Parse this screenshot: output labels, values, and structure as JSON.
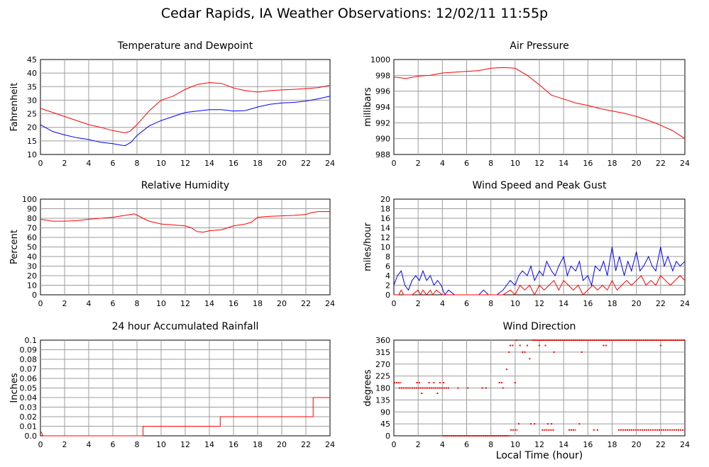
{
  "title": "Cedar Rapids, IA Weather Observations: 12/02/11 11:55p",
  "x_axis_title": "Local Time (hour)",
  "colors": {
    "red": "#ff0000",
    "blue": "#0000ff",
    "grid": "#9c9c9c"
  },
  "chart_data": [
    {
      "id": "temp",
      "type": "line",
      "title": "Temperature and Dewpoint",
      "xlabel": "",
      "ylabel": "Fahrenheit",
      "xlim": [
        0,
        24
      ],
      "ylim": [
        10,
        45
      ],
      "xticks": [
        0,
        2,
        4,
        6,
        8,
        10,
        12,
        14,
        16,
        18,
        20,
        22,
        24
      ],
      "yticks": [
        10,
        15,
        20,
        25,
        30,
        35,
        40,
        45
      ],
      "ytick_labels": [
        "10",
        "15",
        "20",
        "25",
        "30",
        "35",
        "40",
        "45"
      ],
      "grid": true,
      "series": [
        {
          "color": "#ff0000",
          "x": [
            0,
            2,
            4,
            5,
            6,
            7,
            7.4,
            8,
            9,
            10,
            11,
            12,
            13,
            14,
            15,
            16,
            17,
            18,
            19,
            20,
            21,
            22,
            23,
            24
          ],
          "y": [
            27,
            24,
            21,
            20,
            18.8,
            18,
            18.5,
            21,
            26,
            30,
            31.5,
            34,
            35.8,
            36.5,
            36.2,
            34.5,
            33.5,
            33,
            33.5,
            33.8,
            34,
            34.3,
            34.6,
            35.5
          ]
        },
        {
          "color": "#0000ff",
          "x": [
            0,
            1,
            2,
            3,
            4,
            5,
            6,
            7,
            7.5,
            8,
            9,
            10,
            11,
            12,
            13,
            14,
            15,
            16,
            17,
            18,
            19,
            20,
            21,
            22,
            23,
            24
          ],
          "y": [
            21,
            18.5,
            17.2,
            16.2,
            15.5,
            14.5,
            14,
            13.2,
            14.5,
            17,
            20.5,
            22.5,
            24,
            25.5,
            26,
            26.5,
            26.5,
            26,
            26.2,
            27.5,
            28.5,
            29,
            29.2,
            29.7,
            30.5,
            31.5
          ]
        }
      ]
    },
    {
      "id": "pressure",
      "type": "line",
      "title": "Air Pressure",
      "xlabel": "",
      "ylabel": "millibars",
      "xlim": [
        0,
        24
      ],
      "ylim": [
        988,
        1000
      ],
      "xticks": [
        0,
        2,
        4,
        6,
        8,
        10,
        12,
        14,
        16,
        18,
        20,
        22,
        24
      ],
      "yticks": [
        988,
        990,
        992,
        994,
        996,
        998,
        1000
      ],
      "ytick_labels": [
        "988",
        "990",
        "992",
        "994",
        "996",
        "998",
        "1000"
      ],
      "grid": true,
      "series": [
        {
          "color": "#ff0000",
          "x": [
            0,
            1,
            2,
            3,
            4,
            5,
            6,
            7,
            8,
            9,
            10,
            11,
            12,
            13,
            14,
            15,
            16,
            17,
            18,
            19,
            20,
            21,
            22,
            23,
            24
          ],
          "y": [
            997.8,
            997.6,
            997.9,
            998,
            998.3,
            998.4,
            998.5,
            998.6,
            998.9,
            999,
            998.9,
            998,
            996.8,
            995.5,
            995,
            994.5,
            994.2,
            993.8,
            993.5,
            993.2,
            992.8,
            992.3,
            991.7,
            991.0,
            990.0
          ]
        }
      ]
    },
    {
      "id": "humidity",
      "type": "line",
      "title": "Relative Humidity",
      "xlabel": "",
      "ylabel": "Percent",
      "xlim": [
        0,
        24
      ],
      "ylim": [
        0,
        100
      ],
      "xticks": [
        0,
        2,
        4,
        6,
        8,
        10,
        12,
        14,
        16,
        18,
        20,
        22,
        24
      ],
      "yticks": [
        0,
        10,
        20,
        30,
        40,
        50,
        60,
        70,
        80,
        90,
        100
      ],
      "ytick_labels": [
        "0",
        "10",
        "20",
        "30",
        "40",
        "50",
        "60",
        "70",
        "80",
        "90",
        "100"
      ],
      "grid": true,
      "series": [
        {
          "color": "#ff0000",
          "x": [
            0,
            1,
            2,
            3,
            4,
            5,
            6,
            7,
            7.8,
            8.5,
            9,
            10,
            11,
            12,
            12.5,
            13,
            13.5,
            14,
            15,
            16,
            17,
            17.5,
            18,
            19,
            20,
            21,
            22,
            22.5,
            23,
            24
          ],
          "y": [
            79,
            77,
            77,
            77.5,
            79,
            80,
            81,
            83,
            84.5,
            80,
            77,
            74,
            73,
            72,
            70,
            66,
            65.5,
            67,
            68,
            72,
            74,
            76,
            81,
            82,
            82.5,
            83,
            84,
            86,
            87,
            87
          ]
        }
      ]
    },
    {
      "id": "wind",
      "type": "line",
      "title": "Wind Speed and Peak Gust",
      "xlabel": "",
      "ylabel": "miles/hour",
      "xlim": [
        0,
        24
      ],
      "ylim": [
        0,
        20
      ],
      "xticks": [
        0,
        2,
        4,
        6,
        8,
        10,
        12,
        14,
        16,
        18,
        20,
        22,
        24
      ],
      "yticks": [
        0,
        2,
        4,
        6,
        8,
        10,
        12,
        14,
        16,
        18,
        20
      ],
      "ytick_labels": [
        "0",
        "2",
        "4",
        "6",
        "8",
        "10",
        "12",
        "14",
        "16",
        "18",
        "20"
      ],
      "grid": true,
      "series": [
        {
          "color": "#0000ff",
          "x": [
            0,
            0.3,
            0.6,
            0.9,
            1.2,
            1.5,
            1.8,
            2.1,
            2.4,
            2.7,
            3.0,
            3.3,
            3.6,
            3.9,
            4.2,
            4.5,
            5.0,
            6.0,
            7.0,
            7.4,
            7.8,
            8.5,
            9.0,
            9.3,
            9.6,
            10.0,
            10.3,
            10.6,
            11.0,
            11.3,
            11.6,
            12.0,
            12.3,
            12.6,
            13.0,
            13.3,
            13.6,
            14.0,
            14.3,
            14.6,
            15.0,
            15.3,
            15.6,
            16.0,
            16.3,
            16.6,
            17.0,
            17.3,
            17.6,
            18.0,
            18.3,
            18.6,
            19.0,
            19.3,
            19.6,
            20.0,
            20.3,
            20.6,
            21.0,
            21.3,
            21.6,
            22.0,
            22.3,
            22.6,
            23.0,
            23.3,
            23.6,
            24.0
          ],
          "y": [
            2,
            4,
            5,
            2,
            1,
            3,
            4,
            3,
            5,
            3,
            4,
            2,
            3,
            2,
            0,
            1,
            0,
            0,
            0,
            1,
            0,
            0,
            1,
            2,
            3,
            2,
            4,
            5,
            4,
            6,
            3,
            5,
            4,
            7,
            5,
            4,
            6,
            8,
            4,
            6,
            5,
            7,
            3,
            4,
            2,
            6,
            5,
            7,
            4,
            10,
            5,
            8,
            4,
            7,
            5,
            9,
            5,
            6,
            8,
            6,
            5,
            10,
            6,
            8,
            5,
            7,
            6,
            7
          ]
        },
        {
          "color": "#ff0000",
          "x": [
            0,
            0.4,
            0.6,
            0.8,
            1.0,
            1.5,
            2.0,
            2.2,
            2.4,
            2.7,
            3.0,
            3.2,
            3.5,
            4.0,
            9.0,
            9.6,
            10.0,
            10.4,
            10.8,
            11.2,
            11.6,
            12.0,
            12.4,
            12.8,
            13.2,
            13.6,
            14.0,
            14.4,
            14.8,
            15.2,
            15.6,
            16.0,
            16.4,
            16.8,
            17.2,
            17.6,
            18.0,
            18.4,
            18.8,
            19.2,
            19.6,
            20.0,
            20.4,
            20.8,
            21.2,
            21.6,
            22.0,
            22.4,
            22.8,
            23.2,
            23.6,
            24.0
          ],
          "y": [
            0,
            0,
            1,
            0,
            0,
            0,
            1,
            0,
            1,
            0,
            1,
            0,
            1,
            0,
            0,
            1,
            0,
            2,
            1,
            2,
            0,
            2,
            1,
            2,
            3,
            1,
            3,
            2,
            1,
            2,
            0,
            1,
            2,
            1,
            2,
            1,
            3,
            1,
            2,
            3,
            2,
            3,
            4,
            2,
            3,
            2,
            4,
            3,
            2,
            3,
            4,
            3
          ]
        }
      ]
    },
    {
      "id": "rain",
      "type": "line",
      "title": "24 hour Accumulated Rainfall",
      "xlabel": "",
      "ylabel": "Inches",
      "xlim": [
        0,
        24
      ],
      "ylim": [
        0,
        0.1
      ],
      "xticks": [
        0,
        2,
        4,
        6,
        8,
        10,
        12,
        14,
        16,
        18,
        20,
        22,
        24
      ],
      "yticks": [
        0,
        0.01,
        0.02,
        0.03,
        0.04,
        0.05,
        0.06,
        0.07,
        0.08,
        0.09,
        0.1
      ],
      "ytick_labels": [
        "0.0",
        "0.01",
        "0.02",
        "0.03",
        "0.04",
        "0.05",
        "0.06",
        "0.07",
        "0.08",
        "0.09",
        "0.1"
      ],
      "grid": true,
      "series": [
        {
          "color": "#ff0000",
          "x": [
            0,
            0.1,
            0.2,
            8.5,
            8.5,
            14.9,
            14.9,
            22.6,
            22.6,
            24
          ],
          "y": [
            0.005,
            0.003,
            0,
            0,
            0.01,
            0.01,
            0.02,
            0.02,
            0.04,
            0.04
          ]
        }
      ]
    },
    {
      "id": "direction",
      "type": "scatter",
      "title": "Wind Direction",
      "xlabel": "Local Time (hour)",
      "ylabel": "degrees",
      "xlim": [
        0,
        24
      ],
      "ylim": [
        0,
        360
      ],
      "xticks": [
        0,
        2,
        4,
        6,
        8,
        10,
        12,
        14,
        16,
        18,
        20,
        22,
        24
      ],
      "yticks": [
        0,
        45,
        90,
        135,
        180,
        225,
        270,
        315,
        360
      ],
      "ytick_labels": [
        "0",
        "45",
        "90",
        "135",
        "180",
        "225",
        "270",
        "315",
        "360"
      ],
      "grid": true,
      "series": [
        {
          "color": "#ff0000",
          "segments": [
            {
              "x0": 0,
              "x1": 0.6,
              "y": 200
            },
            {
              "x0": 0.4,
              "x1": 4.4,
              "y": 180
            },
            {
              "x0": 4.0,
              "x1": 9.5,
              "y": 0
            },
            {
              "x0": 9.6,
              "x1": 10.2,
              "y": 22
            },
            {
              "x0": 11.4,
              "x1": 24,
              "y": 360
            },
            {
              "x0": 18.5,
              "x1": 24,
              "y": 22
            },
            {
              "x0": 12.2,
              "x1": 13.2,
              "y": 22
            },
            {
              "x0": 14.4,
              "x1": 15.0,
              "y": 22
            }
          ],
          "points": [
            {
              "x": 1.9,
              "y": 200
            },
            {
              "x": 2.1,
              "y": 200
            },
            {
              "x": 2.3,
              "y": 160
            },
            {
              "x": 2.9,
              "y": 200
            },
            {
              "x": 3.3,
              "y": 200
            },
            {
              "x": 3.6,
              "y": 160
            },
            {
              "x": 3.8,
              "y": 200
            },
            {
              "x": 4.1,
              "y": 200
            },
            {
              "x": 4.5,
              "y": 180
            },
            {
              "x": 5.3,
              "y": 180
            },
            {
              "x": 6.1,
              "y": 180
            },
            {
              "x": 7.3,
              "y": 180
            },
            {
              "x": 7.6,
              "y": 180
            },
            {
              "x": 8.7,
              "y": 200
            },
            {
              "x": 8.9,
              "y": 200
            },
            {
              "x": 9.0,
              "y": 180
            },
            {
              "x": 9.3,
              "y": 250
            },
            {
              "x": 9.5,
              "y": 315
            },
            {
              "x": 9.6,
              "y": 340
            },
            {
              "x": 9.8,
              "y": 340
            },
            {
              "x": 10.1,
              "y": 360
            },
            {
              "x": 10.4,
              "y": 340
            },
            {
              "x": 10.6,
              "y": 315
            },
            {
              "x": 10.8,
              "y": 315
            },
            {
              "x": 11.0,
              "y": 340
            },
            {
              "x": 11.2,
              "y": 290
            },
            {
              "x": 11.3,
              "y": 45
            },
            {
              "x": 11.6,
              "y": 45
            },
            {
              "x": 12.0,
              "y": 340
            },
            {
              "x": 12.5,
              "y": 340
            },
            {
              "x": 12.7,
              "y": 45
            },
            {
              "x": 13.0,
              "y": 45
            },
            {
              "x": 13.2,
              "y": 315
            },
            {
              "x": 15.3,
              "y": 45
            },
            {
              "x": 15.5,
              "y": 315
            },
            {
              "x": 16.5,
              "y": 22
            },
            {
              "x": 16.8,
              "y": 22
            },
            {
              "x": 17.3,
              "y": 340
            },
            {
              "x": 17.5,
              "y": 340
            },
            {
              "x": 22.0,
              "y": 340
            },
            {
              "x": 10.3,
              "y": 45
            },
            {
              "x": 10.0,
              "y": 200
            }
          ]
        }
      ]
    }
  ]
}
